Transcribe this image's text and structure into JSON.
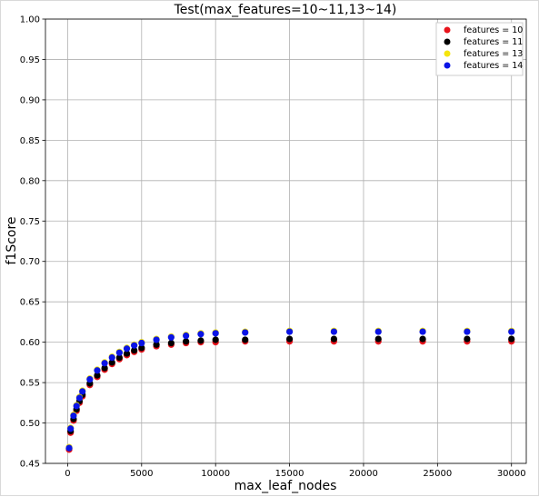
{
  "chart_data": {
    "type": "scatter",
    "title": "Test(max_features=10~11,13~14)",
    "xlabel": "max_leaf_nodes",
    "ylabel": "f1Score",
    "xlim": [
      -1500,
      31000
    ],
    "ylim": [
      0.45,
      1.0
    ],
    "xticks": [
      0,
      5000,
      10000,
      15000,
      20000,
      25000,
      30000
    ],
    "xtick_labels": [
      "0",
      "5000",
      "10000",
      "15000",
      "20000",
      "25000",
      "30000"
    ],
    "yticks": [
      0.45,
      0.5,
      0.55,
      0.6,
      0.65,
      0.7,
      0.75,
      0.8,
      0.85,
      0.9,
      0.95,
      1.0
    ],
    "ytick_labels": [
      "0.45",
      "0.50",
      "0.55",
      "0.60",
      "0.65",
      "0.70",
      "0.75",
      "0.80",
      "0.85",
      "0.90",
      "0.95",
      "1.00"
    ],
    "grid": true,
    "legend_position": "top-right",
    "legend_labels": [
      "features = 10",
      "features = 11",
      "features = 13",
      "features = 14"
    ],
    "series": [
      {
        "name": "features = 10",
        "color": "#e8141c",
        "points": [
          [
            100,
            0.467
          ],
          [
            200,
            0.488
          ],
          [
            400,
            0.503
          ],
          [
            600,
            0.515
          ],
          [
            800,
            0.525
          ],
          [
            1000,
            0.533
          ],
          [
            1500,
            0.547
          ],
          [
            2000,
            0.557
          ],
          [
            2500,
            0.566
          ],
          [
            3000,
            0.573
          ],
          [
            3500,
            0.579
          ],
          [
            4000,
            0.584
          ],
          [
            4500,
            0.588
          ],
          [
            5000,
            0.591
          ],
          [
            6000,
            0.595
          ],
          [
            7000,
            0.597
          ],
          [
            8000,
            0.599
          ],
          [
            9000,
            0.6
          ],
          [
            10000,
            0.6
          ],
          [
            12000,
            0.601
          ],
          [
            15000,
            0.601
          ],
          [
            18000,
            0.601
          ],
          [
            21000,
            0.601
          ],
          [
            24000,
            0.601
          ],
          [
            27000,
            0.601
          ],
          [
            30000,
            0.601
          ]
        ]
      },
      {
        "name": "features = 11",
        "color": "#000000",
        "points": [
          [
            100,
            0.469
          ],
          [
            200,
            0.49
          ],
          [
            400,
            0.505
          ],
          [
            600,
            0.517
          ],
          [
            800,
            0.527
          ],
          [
            1000,
            0.535
          ],
          [
            1500,
            0.549
          ],
          [
            2000,
            0.559
          ],
          [
            2500,
            0.568
          ],
          [
            3000,
            0.575
          ],
          [
            3500,
            0.581
          ],
          [
            4000,
            0.586
          ],
          [
            4500,
            0.59
          ],
          [
            5000,
            0.593
          ],
          [
            6000,
            0.597
          ],
          [
            7000,
            0.599
          ],
          [
            8000,
            0.601
          ],
          [
            9000,
            0.602
          ],
          [
            10000,
            0.603
          ],
          [
            12000,
            0.603
          ],
          [
            15000,
            0.604
          ],
          [
            18000,
            0.604
          ],
          [
            21000,
            0.604
          ],
          [
            24000,
            0.604
          ],
          [
            27000,
            0.604
          ],
          [
            30000,
            0.604
          ]
        ]
      },
      {
        "name": "features = 13",
        "color": "#f5e50c",
        "points": [
          [
            100,
            0.47
          ],
          [
            200,
            0.494
          ],
          [
            400,
            0.51
          ],
          [
            600,
            0.522
          ],
          [
            800,
            0.532
          ],
          [
            1000,
            0.54
          ],
          [
            1500,
            0.555
          ],
          [
            2000,
            0.566
          ],
          [
            2500,
            0.575
          ],
          [
            3000,
            0.582
          ],
          [
            3500,
            0.588
          ],
          [
            4000,
            0.593
          ],
          [
            4500,
            0.597
          ],
          [
            5000,
            0.6
          ],
          [
            6000,
            0.604
          ],
          [
            7000,
            0.607
          ],
          [
            8000,
            0.609
          ],
          [
            9000,
            0.611
          ],
          [
            10000,
            0.612
          ],
          [
            12000,
            0.613
          ],
          [
            15000,
            0.614
          ],
          [
            18000,
            0.614
          ],
          [
            21000,
            0.614
          ],
          [
            24000,
            0.614
          ],
          [
            27000,
            0.614
          ],
          [
            30000,
            0.614
          ]
        ]
      },
      {
        "name": "features = 14",
        "color": "#0a14e6",
        "points": [
          [
            100,
            0.469
          ],
          [
            200,
            0.493
          ],
          [
            400,
            0.509
          ],
          [
            600,
            0.521
          ],
          [
            800,
            0.531
          ],
          [
            1000,
            0.539
          ],
          [
            1500,
            0.554
          ],
          [
            2000,
            0.565
          ],
          [
            2500,
            0.574
          ],
          [
            3000,
            0.581
          ],
          [
            3500,
            0.587
          ],
          [
            4000,
            0.592
          ],
          [
            4500,
            0.596
          ],
          [
            5000,
            0.599
          ],
          [
            6000,
            0.603
          ],
          [
            7000,
            0.606
          ],
          [
            8000,
            0.608
          ],
          [
            9000,
            0.61
          ],
          [
            10000,
            0.611
          ],
          [
            12000,
            0.612
          ],
          [
            15000,
            0.613
          ],
          [
            18000,
            0.613
          ],
          [
            21000,
            0.613
          ],
          [
            24000,
            0.613
          ],
          [
            27000,
            0.613
          ],
          [
            30000,
            0.613
          ]
        ]
      }
    ]
  }
}
